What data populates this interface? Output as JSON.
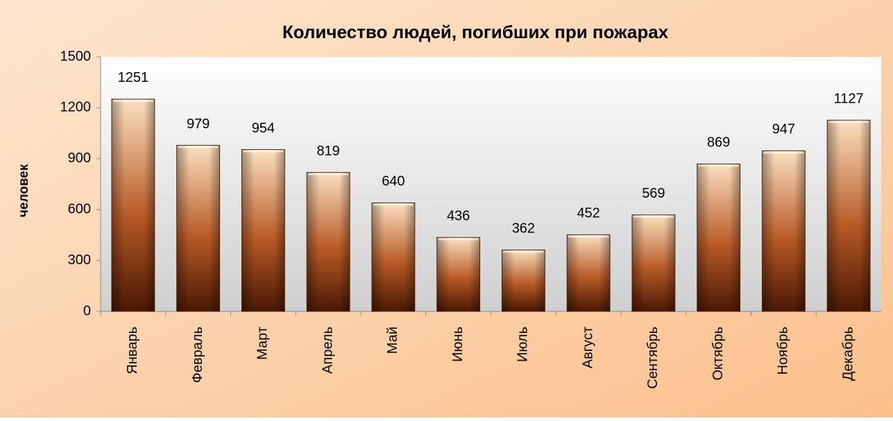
{
  "chart_data": {
    "type": "bar",
    "title": "Количество людей, погибших при пожарах",
    "y_label": "человек",
    "categories": [
      "Январь",
      "Февраль",
      "Март",
      "Апрель",
      "Май",
      "Июнь",
      "Июль",
      "Август",
      "Сентябрь",
      "Октябрь",
      "Ноябрь",
      "Декабрь"
    ],
    "values": [
      1251,
      979,
      954,
      819,
      640,
      436,
      362,
      452,
      569,
      869,
      947,
      1127
    ],
    "color": "#b85a26",
    "ylim": [
      0,
      1500
    ],
    "yticks": [
      0,
      300,
      600,
      900,
      1200,
      1500
    ],
    "grid": false
  }
}
